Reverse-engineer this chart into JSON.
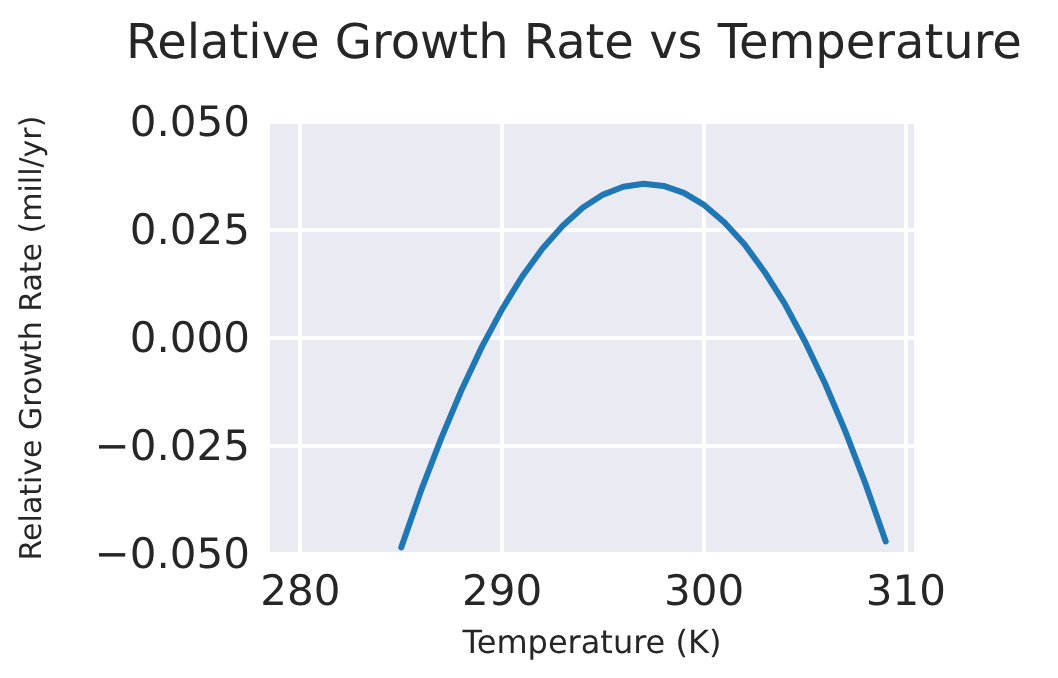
{
  "chart_data": {
    "type": "line",
    "title": "Relative Growth Rate vs Temperature",
    "xlabel": "Temperature (K)",
    "ylabel": "Relative Growth Rate (mill/yr)",
    "x": [
      285,
      286,
      287,
      288,
      289,
      290,
      291,
      292,
      293,
      294,
      295,
      296,
      297,
      298,
      299,
      300,
      301,
      302,
      303,
      304,
      305,
      306,
      307,
      308,
      309
    ],
    "series": [
      {
        "color": "#1f77b4",
        "values": [
          -0.0485,
          -0.0351,
          -0.023,
          -0.0119,
          -0.002,
          0.0067,
          0.0143,
          0.0207,
          0.026,
          0.0302,
          0.0332,
          0.035,
          0.0357,
          0.0352,
          0.0336,
          0.0308,
          0.0268,
          0.0217,
          0.0153,
          0.0079,
          -0.0008,
          -0.0106,
          -0.0216,
          -0.0338,
          -0.0471
        ]
      }
    ],
    "xlim": [
      278.5,
      310.4
    ],
    "xticks": [
      280,
      290,
      300,
      310
    ],
    "ylim": [
      -0.05,
      0.05
    ],
    "yticks": [
      {
        "value": -0.05,
        "label": "−0.050"
      },
      {
        "value": -0.025,
        "label": "−0.025"
      },
      {
        "value": 0,
        "label": "0.000"
      },
      {
        "value": 0.025,
        "label": "0.025"
      },
      {
        "value": 0.05,
        "label": "0.050"
      }
    ],
    "grid": true,
    "marker": "none",
    "line_style": "solid"
  }
}
